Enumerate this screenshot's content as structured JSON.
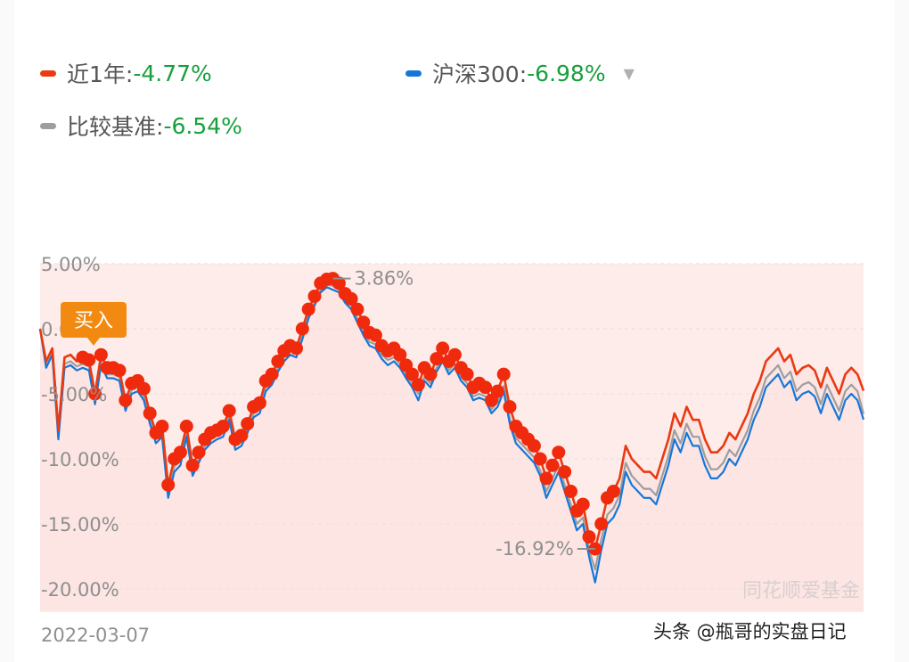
{
  "legend": {
    "series1": {
      "label": "近1年:",
      "value": "-4.77%",
      "color": "#e93a12"
    },
    "series2": {
      "label": "沪深300: ",
      "value": "-6.98%",
      "color": "#1677d9"
    },
    "series3": {
      "label": "比较基准:",
      "value": "-6.54%",
      "color": "#9e9e9e"
    },
    "dropdown_icon": "triangle-down-icon"
  },
  "chart_data": {
    "type": "line",
    "x_start_label": "2022-03-07",
    "y_ticks": [
      "5.00%",
      "0.00%",
      "-5.00%",
      "-10.00%",
      "-15.00%",
      "-20.00%"
    ],
    "ylim": [
      -20,
      5
    ],
    "series": [
      {
        "name": "近1年",
        "color": "#e93a12",
        "values": [
          0,
          -2.5,
          -1.5,
          -7.8,
          -2.2,
          -2.0,
          -2.5,
          -2.2,
          -2.4,
          -5.0,
          -2.0,
          -3.0,
          -3.0,
          -3.2,
          -5.5,
          -4.2,
          -4.0,
          -4.6,
          -6.5,
          -8.0,
          -7.5,
          -12.0,
          -10.0,
          -9.5,
          -7.5,
          -10.5,
          -9.5,
          -8.5,
          -8.0,
          -7.8,
          -7.5,
          -6.3,
          -8.5,
          -8.2,
          -7.3,
          -6.0,
          -5.7,
          -4.0,
          -3.5,
          -2.5,
          -1.7,
          -1.3,
          -1.5,
          0.0,
          1.5,
          2.5,
          3.5,
          3.8,
          3.86,
          3.5,
          2.7,
          2.3,
          1.5,
          0.5,
          -0.3,
          -0.5,
          -1.3,
          -1.7,
          -1.5,
          -2.0,
          -2.8,
          -3.5,
          -4.3,
          -3.0,
          -3.5,
          -2.3,
          -1.5,
          -2.5,
          -2.0,
          -3.0,
          -3.5,
          -4.5,
          -4.2,
          -4.5,
          -5.5,
          -4.8,
          -3.5,
          -6.0,
          -7.5,
          -8.0,
          -8.5,
          -9.0,
          -10.0,
          -11.5,
          -10.5,
          -9.5,
          -11.0,
          -12.5,
          -14.0,
          -13.5,
          -16.0,
          -16.92,
          -15.0,
          -13.0,
          -12.5,
          -11.5,
          -9.0,
          -10.0,
          -10.5,
          -11.0,
          -11.0,
          -11.5,
          -10.0,
          -8.5,
          -6.5,
          -7.5,
          -6.0,
          -7.0,
          -7.0,
          -8.5,
          -9.5,
          -9.5,
          -9.0,
          -8.0,
          -8.5,
          -7.5,
          -6.5,
          -5.0,
          -4.0,
          -2.5,
          -2.0,
          -1.5,
          -2.5,
          -2.0,
          -3.5,
          -3.0,
          -2.8,
          -3.2,
          -4.5,
          -3.0,
          -4.0,
          -5.0,
          -3.5,
          -3.0,
          -3.5,
          -4.77
        ]
      },
      {
        "name": "沪深300",
        "color": "#1677d9",
        "values": [
          0,
          -3.0,
          -2.0,
          -8.5,
          -3.0,
          -2.8,
          -3.2,
          -3.0,
          -3.2,
          -5.8,
          -2.8,
          -3.8,
          -3.8,
          -4.0,
          -6.3,
          -5.0,
          -4.8,
          -5.5,
          -7.3,
          -8.8,
          -8.3,
          -13.0,
          -11.0,
          -10.5,
          -8.3,
          -11.3,
          -10.3,
          -9.3,
          -8.8,
          -8.5,
          -8.3,
          -7.0,
          -9.3,
          -9.0,
          -8.0,
          -6.8,
          -6.5,
          -4.8,
          -4.3,
          -3.3,
          -2.5,
          -2.0,
          -2.2,
          -0.8,
          0.8,
          1.8,
          2.8,
          3.2,
          3.0,
          2.8,
          2.0,
          1.5,
          0.5,
          -0.5,
          -1.3,
          -1.5,
          -2.3,
          -2.8,
          -2.5,
          -3.0,
          -3.8,
          -4.5,
          -5.5,
          -4.0,
          -4.5,
          -3.3,
          -2.5,
          -3.5,
          -3.0,
          -4.0,
          -4.5,
          -5.5,
          -5.3,
          -5.5,
          -6.5,
          -6.0,
          -4.8,
          -7.3,
          -8.8,
          -9.3,
          -9.8,
          -10.3,
          -11.3,
          -13.0,
          -12.0,
          -11.0,
          -12.5,
          -14.0,
          -15.5,
          -15.0,
          -17.5,
          -19.5,
          -17.0,
          -15.0,
          -14.5,
          -13.5,
          -11.0,
          -12.0,
          -12.5,
          -13.0,
          -13.0,
          -13.5,
          -12.0,
          -10.5,
          -8.5,
          -9.5,
          -8.0,
          -9.0,
          -9.0,
          -10.5,
          -11.5,
          -11.5,
          -11.0,
          -10.0,
          -10.5,
          -9.5,
          -8.5,
          -7.0,
          -6.0,
          -4.5,
          -4.0,
          -3.5,
          -4.5,
          -4.0,
          -5.5,
          -5.0,
          -4.8,
          -5.2,
          -6.5,
          -5.0,
          -6.0,
          -7.0,
          -5.5,
          -5.0,
          -5.5,
          -6.98
        ]
      },
      {
        "name": "比较基准",
        "color": "#9e9e9e",
        "values": [
          0,
          -2.8,
          -1.8,
          -8.2,
          -2.7,
          -2.5,
          -2.9,
          -2.7,
          -2.9,
          -5.5,
          -2.5,
          -3.5,
          -3.5,
          -3.7,
          -6.0,
          -4.7,
          -4.5,
          -5.2,
          -7.0,
          -8.5,
          -8.0,
          -12.6,
          -10.6,
          -10.1,
          -8.0,
          -11.0,
          -10.0,
          -9.0,
          -8.5,
          -8.2,
          -8.0,
          -6.7,
          -9.0,
          -8.7,
          -7.7,
          -6.5,
          -6.2,
          -4.5,
          -4.0,
          -3.0,
          -2.2,
          -1.7,
          -1.9,
          -0.5,
          1.0,
          2.0,
          3.0,
          3.4,
          3.3,
          3.0,
          2.2,
          1.8,
          0.8,
          -0.2,
          -1.0,
          -1.2,
          -2.0,
          -2.4,
          -2.2,
          -2.7,
          -3.5,
          -4.2,
          -5.0,
          -3.7,
          -4.2,
          -3.0,
          -2.2,
          -3.2,
          -2.7,
          -3.7,
          -4.2,
          -5.2,
          -5.0,
          -5.2,
          -6.2,
          -5.6,
          -4.4,
          -6.9,
          -8.4,
          -8.9,
          -9.4,
          -9.9,
          -10.9,
          -12.5,
          -11.5,
          -10.5,
          -12.0,
          -13.5,
          -15.0,
          -14.5,
          -17.0,
          -18.5,
          -16.2,
          -14.3,
          -13.8,
          -12.8,
          -10.3,
          -11.3,
          -11.8,
          -12.3,
          -12.3,
          -12.8,
          -11.3,
          -9.8,
          -7.8,
          -8.8,
          -7.3,
          -8.3,
          -8.3,
          -9.8,
          -10.8,
          -10.8,
          -10.3,
          -9.3,
          -9.8,
          -8.8,
          -7.8,
          -6.3,
          -5.3,
          -3.8,
          -3.3,
          -2.8,
          -3.8,
          -3.3,
          -4.8,
          -4.3,
          -4.1,
          -4.5,
          -5.8,
          -4.3,
          -5.3,
          -6.3,
          -4.8,
          -4.3,
          -4.8,
          -6.54
        ]
      }
    ],
    "annotations": {
      "max_label": "3.86%",
      "min_label": "-16.92%",
      "buy_label": "买入"
    },
    "area_fill_color": "#fdecea",
    "grid": true
  },
  "watermark": "同花顺爱基金",
  "source_mark": "头条 @瓶哥的实盘日记"
}
